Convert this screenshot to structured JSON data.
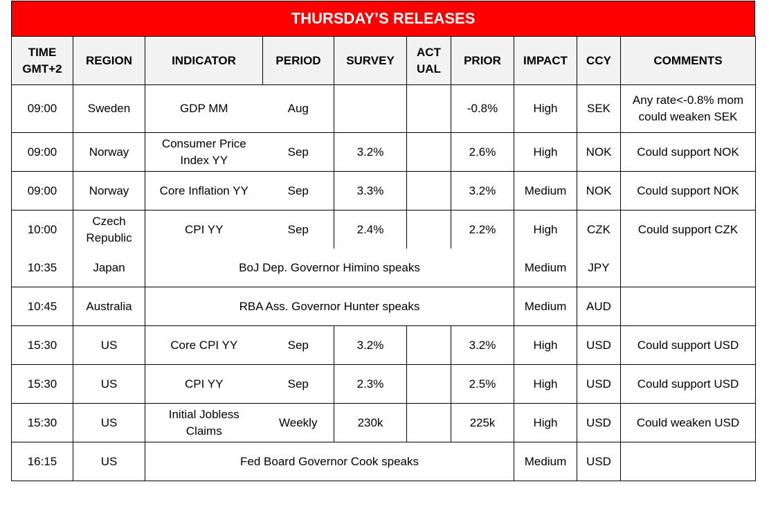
{
  "title": "THURSDAY’S RELEASES",
  "headers": {
    "time_line1": "TIME",
    "time_line2": "GMT+2",
    "region": "REGION",
    "indicator": "INDICATOR",
    "period": "PERIOD",
    "survey": "SURVEY",
    "actual_line1": "ACT",
    "actual_line2": "UAL",
    "prior": "PRIOR",
    "impact": "IMPACT",
    "ccy": "CCY",
    "comments": "COMMENTS"
  },
  "rows": [
    {
      "time": "09:00",
      "region": "Sweden",
      "indicator": "GDP MM",
      "period": "Aug",
      "survey": "",
      "actual": "",
      "prior": "-0.8%",
      "impact": "High",
      "ccy": "SEK",
      "comments_line1": "Any rate<-0.8% mom",
      "comments_line2": "could weaken SEK"
    },
    {
      "time": "09:00",
      "region": "Norway",
      "indicator_line1": "Consumer Price",
      "indicator_line2": "Index YY",
      "period": "Sep",
      "survey": "3.2%",
      "actual": "",
      "prior": "2.6%",
      "impact": "High",
      "ccy": "NOK",
      "comments": "Could support NOK"
    },
    {
      "time": "09:00",
      "region": "Norway",
      "indicator": "Core Inflation YY",
      "period": "Sep",
      "survey": "3.3%",
      "actual": "",
      "prior": "3.2%",
      "impact": "Medium",
      "ccy": "NOK",
      "comments": "Could support NOK"
    },
    {
      "time": "10:00",
      "region_line1": "Czech",
      "region_line2": "Republic",
      "indicator": "CPI YY",
      "period": "Sep",
      "survey": "2.4%",
      "actual": "",
      "prior": "2.2%",
      "impact": "High",
      "ccy": "CZK",
      "comments": "Could support CZK"
    },
    {
      "time": "10:35",
      "region": "Japan",
      "event": "BoJ Dep. Governor Himino speaks",
      "impact": "Medium",
      "ccy": "JPY"
    },
    {
      "time": "10:45",
      "region": "Australia",
      "event": "RBA Ass. Governor Hunter speaks",
      "impact": "Medium",
      "ccy": "AUD"
    },
    {
      "time": "15:30",
      "region": "US",
      "indicator": "Core CPI YY",
      "period": "Sep",
      "survey": "3.2%",
      "actual": "",
      "prior": "3.2%",
      "impact": "High",
      "ccy": "USD",
      "comments": "Could support USD"
    },
    {
      "time": "15:30",
      "region": "US",
      "indicator": "CPI YY",
      "period": "Sep",
      "survey": "2.3%",
      "actual": "",
      "prior": "2.5%",
      "impact": "High",
      "ccy": "USD",
      "comments": "Could support USD"
    },
    {
      "time": "15:30",
      "region": "US",
      "indicator_line1": "Initial Jobless",
      "indicator_line2": "Claims",
      "period": "Weekly",
      "survey": "230k",
      "actual": "",
      "prior": "225k",
      "impact": "High",
      "ccy": "USD",
      "comments": "Could weaken USD"
    },
    {
      "time": "16:15",
      "region": "US",
      "event": "Fed Board Governor Cook speaks",
      "impact": "Medium",
      "ccy": "USD"
    }
  ]
}
